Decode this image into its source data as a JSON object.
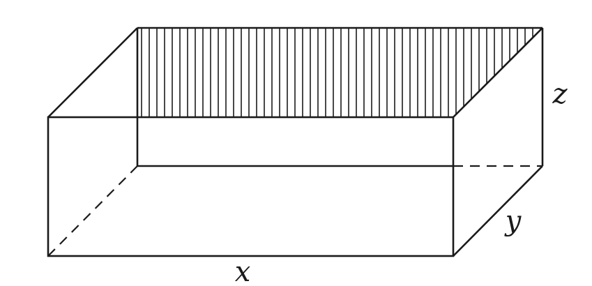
{
  "diagram": {
    "labels": {
      "x": "x",
      "y": "y",
      "z": "z"
    },
    "colors": {
      "stroke": "#1a1a1a",
      "background": "#ffffff"
    }
  }
}
